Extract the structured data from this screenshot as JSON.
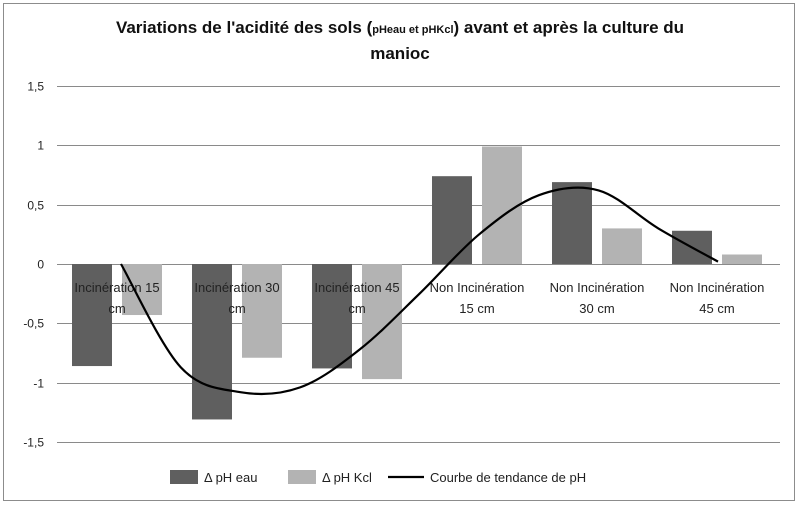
{
  "chart_data": {
    "type": "bar",
    "title": {
      "part1": "Variations de l'acidité des sols (",
      "small": "pHeau et pHKcl",
      "part2": ") avant et après la culture du manioc"
    },
    "categories": [
      [
        "Incinération 15",
        "cm"
      ],
      [
        "Incinération 30",
        "cm"
      ],
      [
        "Incinération 45",
        "cm"
      ],
      [
        "Non Incinération",
        "15 cm"
      ],
      [
        "Non Incinération",
        "30 cm"
      ],
      [
        "Non Incinération",
        "45 cm"
      ]
    ],
    "series": [
      {
        "name": "Δ pH eau",
        "values": [
          -0.86,
          -1.31,
          -0.88,
          0.74,
          0.69,
          0.28
        ],
        "color": "#5f5f5f"
      },
      {
        "name": "Δ pH Kcl",
        "values": [
          -0.43,
          -0.79,
          -0.97,
          0.99,
          0.3,
          0.08
        ],
        "color": "#b3b3b3"
      }
    ],
    "trendline": {
      "name": "Courbe de tendance de pH",
      "color": "#000000",
      "values": [
        0.0,
        -0.87,
        -1.08,
        -1.04,
        -0.72,
        -0.25,
        0.25,
        0.58,
        0.62,
        0.3,
        0.02
      ]
    },
    "ylim": [
      -1.5,
      1.5
    ],
    "yticks": [
      "1,5",
      "1",
      "0,5",
      "0",
      "-0,5",
      "-1",
      "-1,5"
    ],
    "ytick_values": [
      1.5,
      1,
      0.5,
      0,
      -0.5,
      -1,
      -1.5
    ],
    "grid": true,
    "legend_position": "bottom"
  }
}
